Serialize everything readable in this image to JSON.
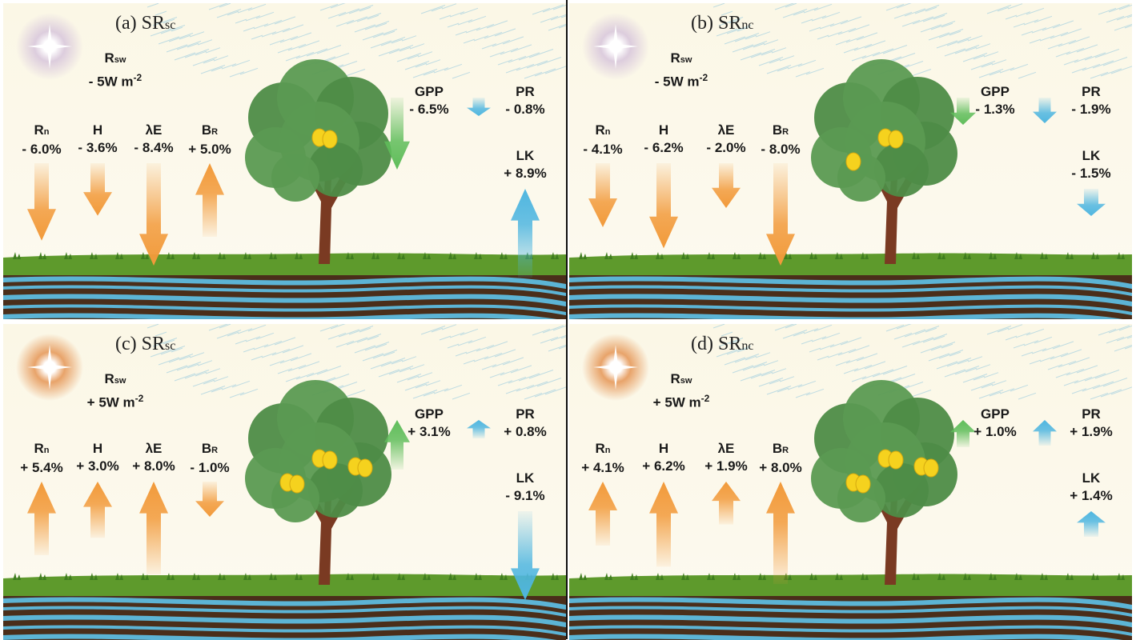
{
  "panels": [
    {
      "id": "a",
      "label": "(a)",
      "scenario": "SR",
      "scenario_sub": "sc",
      "sun_color": "#d9c8dc",
      "rsw": {
        "symbol": "R",
        "sub": "sw",
        "value": "- 5W m",
        "exp": "-2"
      },
      "fluxes": [
        {
          "name": "Rn",
          "symbol": "R",
          "sub": "n",
          "value": "- 6.0%",
          "dir": "down",
          "len": 0.64,
          "color": "#f29a3a"
        },
        {
          "name": "H",
          "symbol": "H",
          "sub": "",
          "value": "- 3.6%",
          "dir": "down",
          "len": 0.38,
          "color": "#f29a3a"
        },
        {
          "name": "LE",
          "symbol": "λE",
          "sub": "",
          "value": "- 8.4%",
          "dir": "down",
          "len": 0.9,
          "color": "#f29a3a"
        },
        {
          "name": "BR",
          "symbol": "B",
          "sub": "R",
          "value": "+ 5.0%",
          "dir": "up",
          "len": 0.6,
          "color": "#f29a3a"
        }
      ],
      "gpp": {
        "symbol": "GPP",
        "value": "- 6.5%",
        "dir": "down",
        "len": 0.9,
        "color": "#5fbd5a"
      },
      "pr": {
        "symbol": "PR",
        "value": "- 0.8%",
        "dir": "down",
        "len": 0.15,
        "color": "#4fb6e0"
      },
      "lk": {
        "symbol": "LK",
        "value": "+ 8.9%",
        "dir": "up",
        "len": 0.95,
        "color": "#4fb6e0"
      },
      "lemons": 2
    },
    {
      "id": "b",
      "label": "(b)",
      "scenario": "SR",
      "scenario_sub": "nc",
      "sun_color": "#d9c8dc",
      "rsw": {
        "symbol": "R",
        "sub": "sw",
        "value": "- 5W m",
        "exp": "-2"
      },
      "fluxes": [
        {
          "name": "Rn",
          "symbol": "R",
          "sub": "n",
          "value": "- 4.1%",
          "dir": "down",
          "len": 0.5,
          "color": "#f29a3a"
        },
        {
          "name": "H",
          "symbol": "H",
          "sub": "",
          "value": "- 6.2%",
          "dir": "down",
          "len": 0.72,
          "color": "#f29a3a"
        },
        {
          "name": "LE",
          "symbol": "λE",
          "sub": "",
          "value": "- 2.0%",
          "dir": "down",
          "len": 0.3,
          "color": "#f29a3a"
        },
        {
          "name": "BR",
          "symbol": "B",
          "sub": "R",
          "value": "- 8.0%",
          "dir": "down",
          "len": 0.9,
          "color": "#f29a3a"
        }
      ],
      "gpp": {
        "symbol": "GPP",
        "value": "- 1.3%",
        "dir": "down",
        "len": 0.2,
        "color": "#5fbd5a"
      },
      "pr": {
        "symbol": "PR",
        "value": "- 1.9%",
        "dir": "down",
        "len": 0.3,
        "color": "#4fb6e0"
      },
      "lk": {
        "symbol": "LK",
        "value": "- 1.5%",
        "dir": "down",
        "len": 0.18,
        "color": "#4fb6e0"
      },
      "lemons": 3
    },
    {
      "id": "c",
      "label": "(c)",
      "scenario": "SR",
      "scenario_sub": "sc",
      "sun_color": "#e69a5c",
      "rsw": {
        "symbol": "R",
        "sub": "sw",
        "value": "+ 5W m",
        "exp": "-2"
      },
      "fluxes": [
        {
          "name": "Rn",
          "symbol": "R",
          "sub": "n",
          "value": "+ 5.4%",
          "dir": "up",
          "len": 0.6,
          "color": "#f29a3a"
        },
        {
          "name": "H",
          "symbol": "H",
          "sub": "",
          "value": "+ 3.0%",
          "dir": "up",
          "len": 0.42,
          "color": "#f29a3a"
        },
        {
          "name": "LE",
          "symbol": "λE",
          "sub": "",
          "value": "+ 8.0%",
          "dir": "up",
          "len": 0.8,
          "color": "#f29a3a"
        },
        {
          "name": "BR",
          "symbol": "B",
          "sub": "R",
          "value": "- 1.0%",
          "dir": "down",
          "len": 0.2,
          "color": "#f29a3a"
        }
      ],
      "gpp": {
        "symbol": "GPP",
        "value": "+ 3.1%",
        "dir": "up",
        "len": 0.55,
        "color": "#5fbd5a"
      },
      "pr": {
        "symbol": "PR",
        "value": "+ 0.8%",
        "dir": "up",
        "len": 0.15,
        "color": "#4fb6e0"
      },
      "lk": {
        "symbol": "LK",
        "value": "- 9.1%",
        "dir": "down",
        "len": 0.95,
        "color": "#4fb6e0"
      },
      "lemons": 6
    },
    {
      "id": "d",
      "label": "(d)",
      "scenario": "SR",
      "scenario_sub": "nc",
      "sun_color": "#e69a5c",
      "rsw": {
        "symbol": "R",
        "sub": "sw",
        "value": "+ 5W m",
        "exp": "-2"
      },
      "fluxes": [
        {
          "name": "Rn",
          "symbol": "R",
          "sub": "n",
          "value": "+ 4.1%",
          "dir": "up",
          "len": 0.5,
          "color": "#f29a3a"
        },
        {
          "name": "H",
          "symbol": "H",
          "sub": "",
          "value": "+ 6.2%",
          "dir": "up",
          "len": 0.72,
          "color": "#f29a3a"
        },
        {
          "name": "LE",
          "symbol": "λE",
          "sub": "",
          "value": "+ 1.9%",
          "dir": "up",
          "len": 0.28,
          "color": "#f29a3a"
        },
        {
          "name": "BR",
          "symbol": "B",
          "sub": "R",
          "value": "+ 8.0%",
          "dir": "up",
          "len": 0.9,
          "color": "#f29a3a"
        }
      ],
      "gpp": {
        "symbol": "GPP",
        "value": "+ 1.0%",
        "dir": "up",
        "len": 0.2,
        "color": "#5fbd5a"
      },
      "pr": {
        "symbol": "PR",
        "value": "+ 1.9%",
        "dir": "up",
        "len": 0.3,
        "color": "#4fb6e0"
      },
      "lk": {
        "symbol": "LK",
        "value": "+ 1.4%",
        "dir": "up",
        "len": 0.16,
        "color": "#4fb6e0"
      },
      "lemons": 6
    }
  ]
}
